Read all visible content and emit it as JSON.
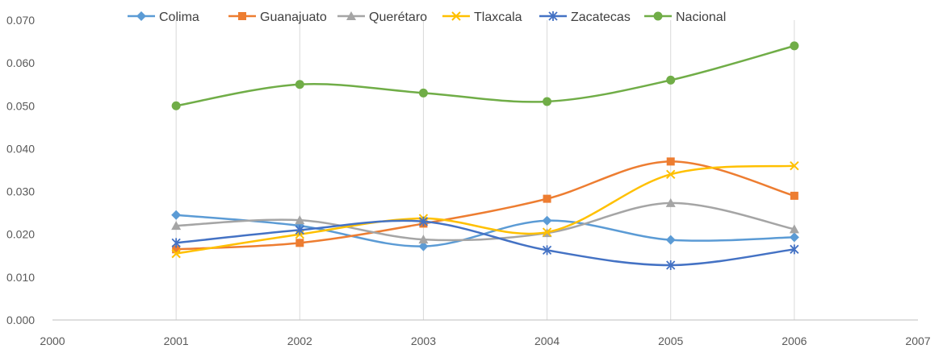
{
  "chart_data": {
    "type": "line",
    "title": "",
    "xlabel": "",
    "ylabel": "",
    "xlim": [
      2000,
      2007
    ],
    "ylim": [
      0,
      0.07
    ],
    "x_ticks": [
      "2000",
      "2001",
      "2002",
      "2003",
      "2004",
      "2005",
      "2006",
      "2007"
    ],
    "y_ticks": [
      "0.000",
      "0.010",
      "0.020",
      "0.030",
      "0.040",
      "0.050",
      "0.060",
      "0.070"
    ],
    "grid": "vertical",
    "legend_position": "top",
    "x": [
      2001,
      2002,
      2003,
      2004,
      2005,
      2006
    ],
    "series": [
      {
        "name": "Colima",
        "color": "#5B9BD5",
        "marker": "diamond",
        "values": [
          0.0245,
          0.022,
          0.0172,
          0.0232,
          0.0187,
          0.0193
        ]
      },
      {
        "name": "Guanajuato",
        "color": "#ED7D31",
        "marker": "square",
        "values": [
          0.0165,
          0.018,
          0.0225,
          0.0283,
          0.037,
          0.029
        ]
      },
      {
        "name": "Querétaro",
        "color": "#A5A5A5",
        "marker": "triangle",
        "values": [
          0.022,
          0.0233,
          0.0188,
          0.0203,
          0.0273,
          0.0212
        ]
      },
      {
        "name": "Tlaxcala",
        "color": "#FFC000",
        "marker": "x",
        "values": [
          0.0155,
          0.02,
          0.0237,
          0.0205,
          0.034,
          0.036
        ]
      },
      {
        "name": "Zacatecas",
        "color": "#4472C4",
        "marker": "star",
        "values": [
          0.018,
          0.021,
          0.023,
          0.0163,
          0.0128,
          0.0165
        ]
      },
      {
        "name": "Nacional",
        "color": "#70AD47",
        "marker": "circle",
        "values": [
          0.05,
          0.055,
          0.053,
          0.051,
          0.056,
          0.064
        ]
      }
    ]
  }
}
